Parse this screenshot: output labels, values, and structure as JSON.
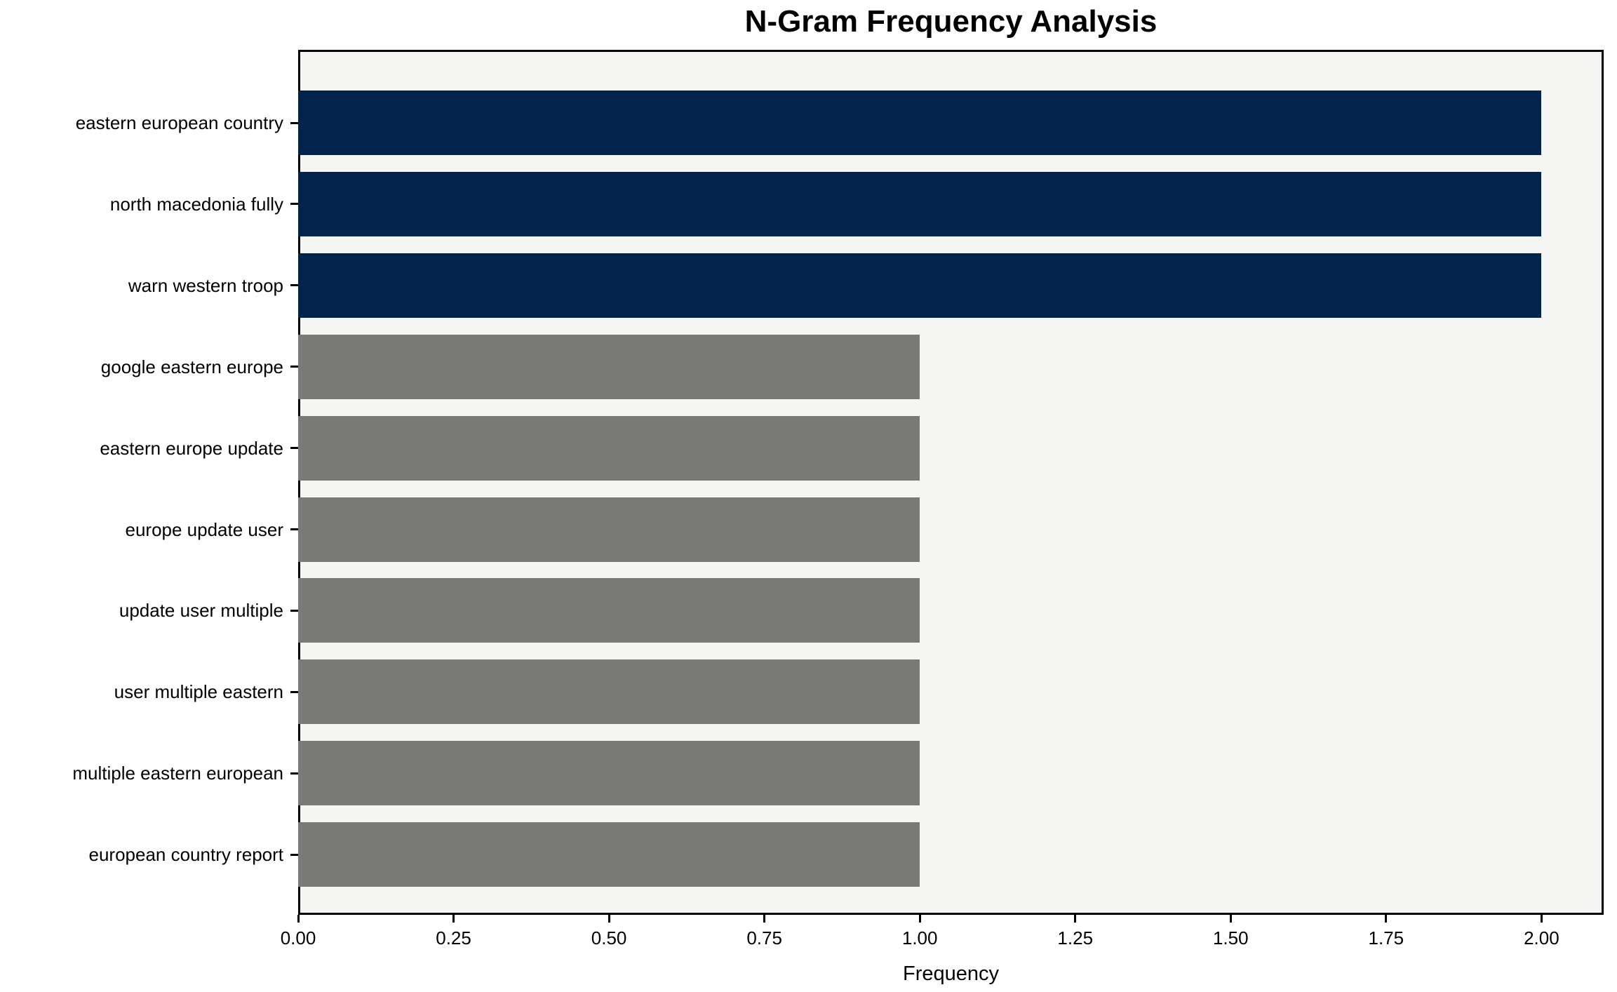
{
  "chart_data": {
    "type": "bar",
    "orientation": "horizontal",
    "title": "N-Gram Frequency Analysis",
    "xlabel": "Frequency",
    "ylabel": "",
    "categories": [
      "eastern european country",
      "north macedonia fully",
      "warn western troop",
      "google eastern europe",
      "eastern europe update",
      "europe update user",
      "update user multiple",
      "user multiple eastern",
      "multiple eastern european",
      "european country report"
    ],
    "values": [
      2,
      2,
      2,
      1,
      1,
      1,
      1,
      1,
      1,
      1
    ],
    "bar_colors": [
      "#02234C",
      "#02234C",
      "#02234C",
      "#797A76",
      "#797A76",
      "#797A76",
      "#797A76",
      "#797A76",
      "#797A76",
      "#797A76"
    ],
    "xlim": [
      0,
      2.1
    ],
    "xticks": [
      0,
      0.25,
      0.5,
      0.75,
      1.0,
      1.25,
      1.5,
      1.75,
      2.0
    ],
    "xtick_labels": [
      "0.00",
      "0.25",
      "0.50",
      "0.75",
      "1.00",
      "1.25",
      "1.50",
      "1.75",
      "2.00"
    ],
    "grid": false,
    "legend": null,
    "plot_background": "#f5f5f4",
    "figure_background": "#ffffff",
    "spine_color": "#000000",
    "text_color": "#000000"
  }
}
